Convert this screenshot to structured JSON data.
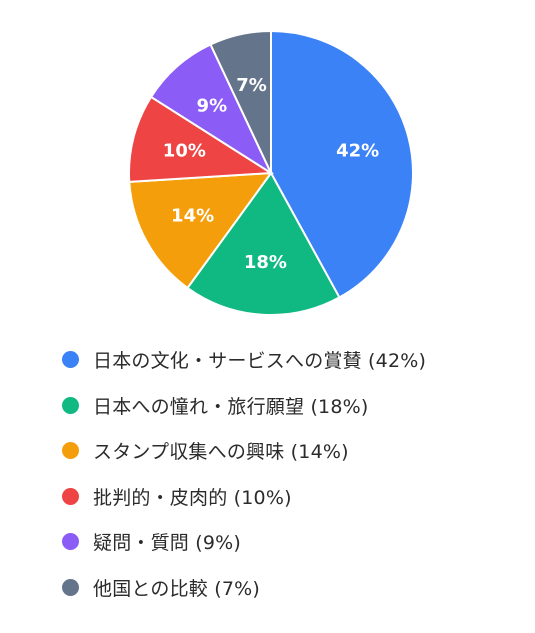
{
  "chart_data": {
    "type": "pie",
    "title": "",
    "slices": [
      {
        "label": "日本の文化・サービスへの賞賛 (42%)",
        "value": 42,
        "value_label": "42%",
        "color": "#3B82F6"
      },
      {
        "label": "日本への憧れ・旅行願望 (18%)",
        "value": 18,
        "value_label": "18%",
        "color": "#10B981"
      },
      {
        "label": "スタンプ収集への興味 (14%)",
        "value": 14,
        "value_label": "14%",
        "color": "#F59E0B"
      },
      {
        "label": "批判的・皮肉的 (10%)",
        "value": 10,
        "value_label": "10%",
        "color": "#EF4444"
      },
      {
        "label": "疑問・質問 (9%)",
        "value": 9,
        "value_label": "9%",
        "color": "#8B5CF6"
      },
      {
        "label": "他国との比較 (7%)",
        "value": 7,
        "value_label": "7%",
        "color": "#64748B"
      }
    ],
    "legend_position": "bottom"
  }
}
